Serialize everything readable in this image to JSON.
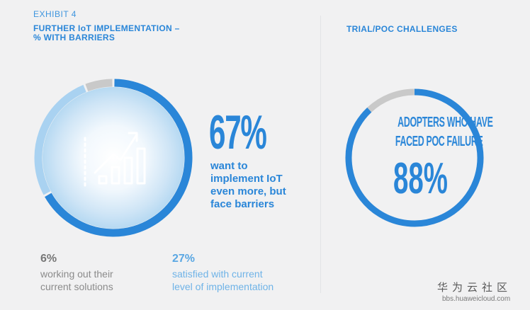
{
  "exhibit_label": "EXHIBIT 4",
  "left_panel": {
    "title_line1": "FURTHER IoT IMPLEMENTATION –",
    "title_line2": "% WITH BARRIERS",
    "main_stat": {
      "value": "67%",
      "value_num": 67,
      "description_lines": [
        "want to",
        "implement IoT",
        "even more, but",
        "face barriers"
      ]
    },
    "segments": [
      {
        "value_num": 67,
        "color": "#2a86d8"
      },
      {
        "value_num": 27,
        "color": "#a9d2f1"
      },
      {
        "value_num": 6,
        "color": "#c9c9c9"
      }
    ],
    "secondary_stats": [
      {
        "value": "6%",
        "lines": [
          "working out their",
          "current solutions"
        ]
      },
      {
        "value": "27%",
        "lines": [
          "satisfied with current",
          "level of implementation"
        ]
      }
    ],
    "icon": "bar-chart-growth-icon"
  },
  "right_panel": {
    "title": "TRIAL/POC CHALLENGES",
    "ring_lines": [
      "ADOPTERS WHO HAVE",
      "FACED POC FAILURE"
    ],
    "value": "88%",
    "value_num": 88,
    "colors": {
      "fill": "#2a86d8",
      "rest": "#c9c9c9"
    }
  },
  "watermark": {
    "cn": "华为云社区",
    "url": "bbs.huaweicloud.com"
  }
}
